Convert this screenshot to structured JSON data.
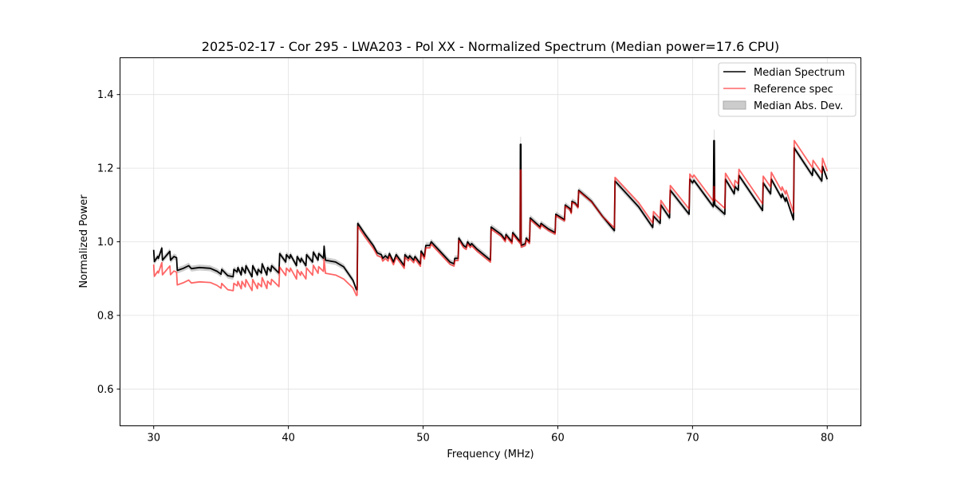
{
  "chart_data": {
    "type": "line",
    "title": "2025-02-17 - Cor 295 - LWA203 - Pol XX - Normalized Spectrum (Median power=17.6 CPU)",
    "xlabel": "Frequency (MHz)",
    "ylabel": "Normalized Power",
    "xlim": [
      27.5,
      82.5
    ],
    "ylim": [
      0.5,
      1.5
    ],
    "xticks": [
      30,
      40,
      50,
      60,
      70,
      80
    ],
    "yticks": [
      0.6,
      0.8,
      1.0,
      1.2,
      1.4
    ],
    "xtick_labels": [
      "30",
      "40",
      "50",
      "60",
      "70",
      "80"
    ],
    "ytick_labels": [
      "0.6",
      "0.8",
      "1.0",
      "1.2",
      "1.4"
    ],
    "grid": true,
    "legend_position": "top-right",
    "legend": [
      "Median Spectrum",
      "Reference spec",
      "Median Abs. Dev."
    ],
    "colors": {
      "median": "#000000",
      "reference": "#ff0000",
      "mad": "#999999"
    },
    "median_points": [
      [
        30.0,
        0.978
      ],
      [
        30.05,
        0.946
      ],
      [
        30.3,
        0.96
      ],
      [
        30.35,
        0.955
      ],
      [
        30.6,
        0.983
      ],
      [
        30.65,
        0.95
      ],
      [
        31.2,
        0.974
      ],
      [
        31.25,
        0.95
      ],
      [
        31.5,
        0.96
      ],
      [
        31.7,
        0.957
      ],
      [
        31.75,
        0.922
      ],
      [
        32.2,
        0.928
      ],
      [
        32.6,
        0.935
      ],
      [
        32.8,
        0.927
      ],
      [
        33.4,
        0.93
      ],
      [
        34.2,
        0.928
      ],
      [
        34.7,
        0.92
      ],
      [
        35.0,
        0.912
      ],
      [
        35.05,
        0.925
      ],
      [
        35.5,
        0.908
      ],
      [
        35.9,
        0.905
      ],
      [
        35.95,
        0.925
      ],
      [
        36.2,
        0.918
      ],
      [
        36.25,
        0.93
      ],
      [
        36.5,
        0.91
      ],
      [
        36.55,
        0.93
      ],
      [
        36.8,
        0.915
      ],
      [
        36.85,
        0.935
      ],
      [
        37.3,
        0.905
      ],
      [
        37.35,
        0.935
      ],
      [
        37.7,
        0.91
      ],
      [
        37.75,
        0.925
      ],
      [
        38.0,
        0.915
      ],
      [
        38.05,
        0.94
      ],
      [
        38.4,
        0.91
      ],
      [
        38.45,
        0.93
      ],
      [
        38.7,
        0.92
      ],
      [
        38.75,
        0.935
      ],
      [
        39.3,
        0.915
      ],
      [
        39.35,
        0.968
      ],
      [
        39.8,
        0.945
      ],
      [
        39.85,
        0.965
      ],
      [
        40.1,
        0.955
      ],
      [
        40.15,
        0.965
      ],
      [
        40.6,
        0.935
      ],
      [
        40.65,
        0.96
      ],
      [
        40.9,
        0.945
      ],
      [
        40.95,
        0.955
      ],
      [
        41.3,
        0.935
      ],
      [
        41.35,
        0.965
      ],
      [
        41.8,
        0.945
      ],
      [
        41.85,
        0.972
      ],
      [
        42.2,
        0.95
      ],
      [
        42.25,
        0.968
      ],
      [
        42.6,
        0.955
      ],
      [
        42.65,
        0.988
      ],
      [
        42.75,
        0.95
      ],
      [
        43.5,
        0.945
      ],
      [
        44.1,
        0.932
      ],
      [
        44.8,
        0.895
      ],
      [
        45.05,
        0.87
      ],
      [
        45.1,
        0.87
      ],
      [
        45.15,
        1.05
      ],
      [
        45.7,
        1.02
      ],
      [
        46.3,
        0.99
      ],
      [
        46.6,
        0.97
      ],
      [
        46.9,
        0.965
      ],
      [
        47.0,
        0.955
      ],
      [
        47.2,
        0.962
      ],
      [
        47.4,
        0.955
      ],
      [
        47.5,
        0.968
      ],
      [
        47.8,
        0.945
      ],
      [
        48.0,
        0.965
      ],
      [
        48.6,
        0.935
      ],
      [
        48.65,
        0.965
      ],
      [
        48.9,
        0.955
      ],
      [
        49.0,
        0.962
      ],
      [
        49.3,
        0.95
      ],
      [
        49.4,
        0.96
      ],
      [
        49.8,
        0.94
      ],
      [
        49.85,
        0.975
      ],
      [
        50.1,
        0.96
      ],
      [
        50.2,
        0.99
      ],
      [
        50.5,
        0.99
      ],
      [
        50.6,
        1.0
      ],
      [
        52.0,
        0.945
      ],
      [
        52.3,
        0.94
      ],
      [
        52.35,
        0.955
      ],
      [
        52.6,
        0.955
      ],
      [
        52.65,
        1.01
      ],
      [
        53.0,
        0.99
      ],
      [
        53.2,
        0.985
      ],
      [
        53.3,
        1.0
      ],
      [
        53.5,
        0.99
      ],
      [
        53.6,
        0.995
      ],
      [
        54.0,
        0.98
      ],
      [
        55.0,
        0.95
      ],
      [
        55.05,
        1.04
      ],
      [
        55.8,
        1.02
      ],
      [
        56.1,
        1.005
      ],
      [
        56.15,
        1.02
      ],
      [
        56.6,
        1.0
      ],
      [
        56.65,
        1.025
      ],
      [
        57.2,
        1.0
      ],
      [
        57.22,
        1.265
      ],
      [
        57.26,
        1.265
      ],
      [
        57.28,
        0.99
      ],
      [
        57.6,
        0.995
      ],
      [
        57.65,
        1.01
      ],
      [
        57.9,
        1.0
      ],
      [
        57.95,
        1.065
      ],
      [
        58.7,
        1.04
      ],
      [
        58.75,
        1.05
      ],
      [
        59.3,
        1.035
      ],
      [
        59.8,
        1.025
      ],
      [
        59.85,
        1.075
      ],
      [
        60.5,
        1.06
      ],
      [
        60.55,
        1.1
      ],
      [
        60.9,
        1.09
      ],
      [
        61.0,
        1.08
      ],
      [
        61.05,
        1.11
      ],
      [
        61.3,
        1.105
      ],
      [
        61.5,
        1.095
      ],
      [
        61.55,
        1.14
      ],
      [
        62.5,
        1.11
      ],
      [
        63.3,
        1.07
      ],
      [
        64.2,
        1.03
      ],
      [
        64.25,
        1.165
      ],
      [
        66.0,
        1.095
      ],
      [
        67.05,
        1.039
      ],
      [
        67.1,
        1.07
      ],
      [
        67.6,
        1.05
      ],
      [
        67.65,
        1.1
      ],
      [
        68.3,
        1.065
      ],
      [
        68.35,
        1.14
      ],
      [
        69.75,
        1.075
      ],
      [
        69.8,
        1.17
      ],
      [
        70.0,
        1.16
      ],
      [
        70.1,
        1.167
      ],
      [
        71.55,
        1.095
      ],
      [
        71.58,
        1.275
      ],
      [
        71.62,
        1.275
      ],
      [
        71.65,
        1.1
      ],
      [
        72.4,
        1.075
      ],
      [
        72.45,
        1.17
      ],
      [
        73.1,
        1.13
      ],
      [
        73.15,
        1.15
      ],
      [
        73.4,
        1.14
      ],
      [
        73.45,
        1.18
      ],
      [
        75.2,
        1.085
      ],
      [
        75.25,
        1.16
      ],
      [
        75.8,
        1.13
      ],
      [
        75.85,
        1.17
      ],
      [
        76.6,
        1.12
      ],
      [
        76.65,
        1.13
      ],
      [
        76.9,
        1.11
      ],
      [
        76.95,
        1.12
      ],
      [
        77.5,
        1.06
      ],
      [
        77.55,
        1.255
      ],
      [
        78.9,
        1.18
      ],
      [
        78.95,
        1.2
      ],
      [
        79.6,
        1.165
      ],
      [
        79.65,
        1.205
      ],
      [
        80.0,
        1.17
      ]
    ],
    "reference_offset_vs_median": [
      [
        30.0,
        -0.04
      ],
      [
        44.0,
        -0.035
      ],
      [
        45.1,
        -0.015
      ],
      [
        45.15,
        -0.008
      ],
      [
        60.0,
        -0.004
      ],
      [
        64.0,
        0.0
      ],
      [
        64.25,
        0.01
      ],
      [
        80.0,
        0.022
      ]
    ],
    "reference_spike_values": [
      [
        57.22,
        1.195
      ],
      [
        57.26,
        1.195
      ],
      [
        71.58,
        1.15
      ],
      [
        71.62,
        1.15
      ]
    ],
    "mad_typical": 0.008,
    "mad_spikes": [
      [
        57.22,
        0.02
      ],
      [
        57.26,
        0.02
      ],
      [
        71.58,
        0.03
      ],
      [
        71.62,
        0.03
      ]
    ]
  }
}
